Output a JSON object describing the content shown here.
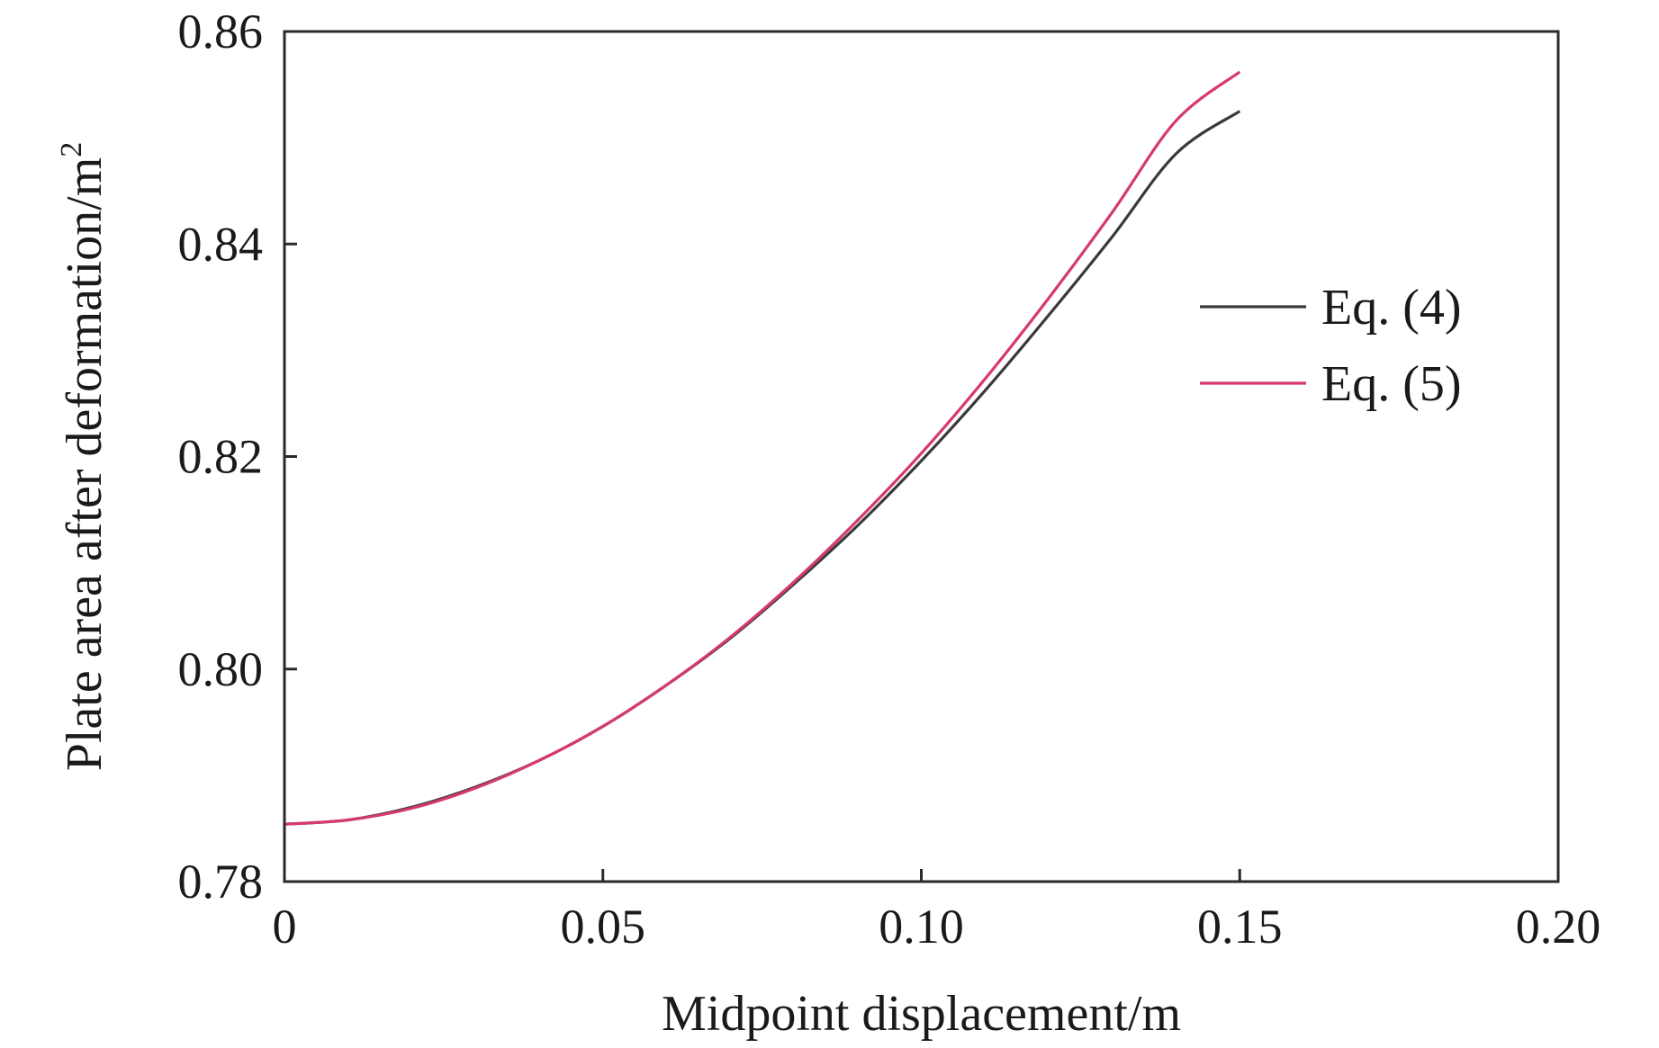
{
  "chart_data": {
    "type": "line",
    "title": "",
    "xlabel": "Midpoint displacement/m",
    "ylabel": "Plate area after deformation/m",
    "ylabel_superscript": "2",
    "xlim": [
      0,
      0.2
    ],
    "ylim": [
      0.78,
      0.86
    ],
    "x_ticks": [
      0,
      0.05,
      0.1,
      0.15,
      0.2
    ],
    "x_tick_labels": [
      "0",
      "0.05",
      "0.10",
      "0.15",
      "0.20"
    ],
    "y_ticks": [
      0.78,
      0.8,
      0.82,
      0.84,
      0.86
    ],
    "y_tick_labels": [
      "0.78",
      "0.80",
      "0.82",
      "0.84",
      "0.86"
    ],
    "grid": false,
    "legend_position": "right",
    "series": [
      {
        "name": "Eq. (4)",
        "color": "#3a3a3a",
        "x": [
          0,
          0.01,
          0.02,
          0.03,
          0.04,
          0.05,
          0.06,
          0.07,
          0.08,
          0.09,
          0.1,
          0.11,
          0.12,
          0.13,
          0.14,
          0.15
        ],
        "y": [
          0.7854,
          0.7858,
          0.787,
          0.7889,
          0.7914,
          0.7946,
          0.7985,
          0.8029,
          0.808,
          0.8135,
          0.8196,
          0.8262,
          0.8333,
          0.8407,
          0.8485,
          0.8525
        ]
      },
      {
        "name": "Eq. (5)",
        "color": "#d63a6a",
        "x": [
          0,
          0.01,
          0.02,
          0.03,
          0.04,
          0.05,
          0.06,
          0.07,
          0.08,
          0.09,
          0.1,
          0.11,
          0.12,
          0.13,
          0.14,
          0.15
        ],
        "y": [
          0.7854,
          0.7858,
          0.7869,
          0.7888,
          0.7914,
          0.7946,
          0.7985,
          0.803,
          0.8082,
          0.814,
          0.8203,
          0.8273,
          0.8349,
          0.843,
          0.8516,
          0.8562
        ]
      }
    ]
  }
}
